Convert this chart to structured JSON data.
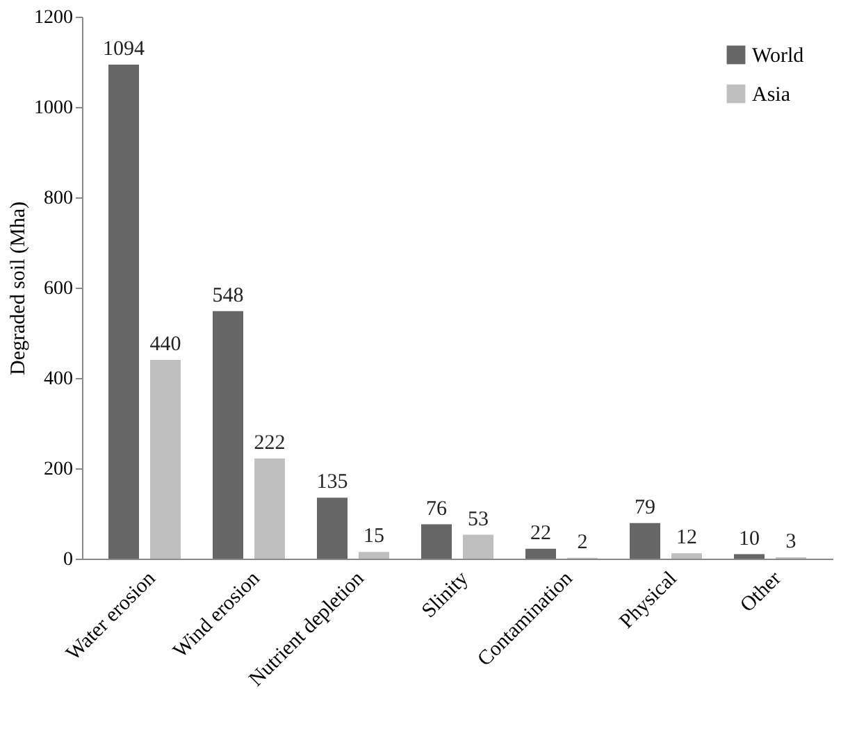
{
  "chart_data": {
    "type": "bar",
    "ylabel": "Degraded soil (Mha)",
    "categories": [
      "Water erosion",
      "Wind erosion",
      "Nutrient depletion",
      "Slinity",
      "Contamination",
      "Physical",
      "Other"
    ],
    "series": [
      {
        "name": "World",
        "color": "#666666",
        "values": [
          1094,
          548,
          135,
          76,
          22,
          79,
          10
        ]
      },
      {
        "name": "Asia",
        "color": "#bfbfbf",
        "values": [
          440,
          222,
          15,
          53,
          2,
          12,
          3
        ]
      }
    ],
    "ylim": [
      0,
      1200
    ],
    "yticks": [
      0,
      200,
      400,
      600,
      800,
      1000,
      1200
    ],
    "grid": false,
    "legend": "top right",
    "data_labels": true
  }
}
